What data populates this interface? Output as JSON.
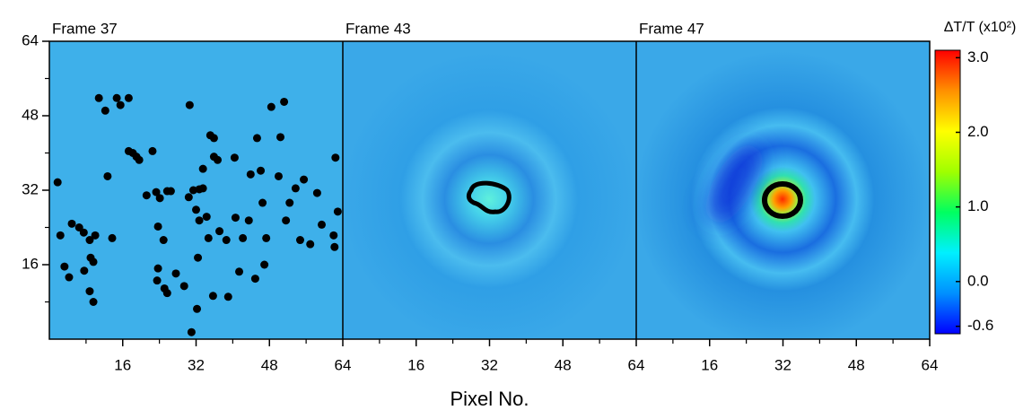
{
  "chart_data": [
    {
      "type": "scatter",
      "title": "Frame 37",
      "xlim": [
        0,
        64
      ],
      "ylim": [
        0,
        64
      ],
      "xticks": [
        16,
        32,
        48,
        64
      ],
      "yticks": [
        16,
        32,
        48,
        64
      ],
      "minor_ticks": [
        8,
        24,
        40,
        56
      ],
      "series": [
        {
          "color": "#000000",
          "x": [
            1.8,
            2.4,
            3.3,
            4.3,
            4.9,
            6.5,
            7.5,
            7.6,
            8.8,
            9.0,
            10.0,
            9.6,
            8.8,
            9.6,
            10.8,
            12.2,
            12.7,
            13.7,
            14.7,
            15.5,
            17.3,
            17.3,
            18.2,
            19.0,
            19.6,
            21.2,
            22.5,
            23.3,
            24.1,
            25.7,
            26.5,
            23.7,
            24.9,
            23.7,
            23.5,
            25.1,
            25.7,
            27.6,
            29.4,
            30.6,
            30.4,
            31.4,
            32.7,
            32.0,
            33.5,
            32.7,
            34.3,
            34.7,
            32.4,
            33.5,
            35.1,
            35.9,
            36.7,
            35.7,
            37.1,
            38.6,
            39.0,
            40.4,
            40.6,
            41.4,
            42.2,
            43.5,
            43.9,
            45.3,
            46.1,
            46.5,
            47.3,
            44.9,
            46.9,
            48.4,
            50.0,
            51.2,
            50.4,
            51.6,
            52.4,
            53.7,
            54.7,
            55.5,
            56.9,
            58.4,
            59.4,
            62.0,
            62.4,
            62.2,
            62.9,
            31.0,
            32.2,
            35.9
          ],
          "values": [
            33.7,
            22.3,
            15.6,
            13.3,
            24.8,
            24.0,
            22.9,
            14.7,
            21.3,
            17.5,
            22.3,
            16.6,
            10.3,
            8.0,
            51.8,
            49.1,
            35.0,
            21.7,
            51.8,
            50.3,
            51.8,
            40.4,
            40.0,
            39.2,
            38.5,
            30.9,
            40.4,
            31.6,
            30.3,
            31.8,
            31.8,
            24.2,
            21.3,
            15.2,
            12.6,
            10.9,
            9.9,
            14.1,
            11.4,
            50.3,
            30.5,
            32.0,
            32.2,
            27.8,
            32.4,
            25.5,
            26.3,
            21.7,
            17.5,
            36.6,
            43.8,
            39.2,
            38.5,
            9.3,
            23.2,
            21.3,
            9.1,
            39.0,
            26.1,
            14.5,
            21.7,
            25.5,
            35.4,
            43.2,
            36.2,
            29.3,
            21.7,
            13.0,
            16.0,
            49.9,
            35.0,
            51.0,
            43.4,
            25.5,
            29.3,
            32.4,
            21.3,
            34.3,
            20.4,
            31.4,
            24.6,
            22.3,
            39.0,
            19.8,
            27.4,
            1.5,
            6.5,
            43.2
          ]
        }
      ]
    },
    {
      "type": "heatmap",
      "title": "Frame 43",
      "xlim": [
        0,
        64
      ],
      "ylim": [
        0,
        64
      ],
      "xticks": [
        16,
        32,
        48,
        64
      ],
      "minor_ticks": [
        8,
        24,
        40,
        56
      ],
      "xlabel": "Pixel No."
    },
    {
      "type": "heatmap",
      "title": "Frame 47",
      "xlim": [
        0,
        64
      ],
      "ylim": [
        0,
        64
      ],
      "xticks": [
        16,
        32,
        48,
        64
      ],
      "minor_ticks": [
        8,
        24,
        40,
        56
      ]
    },
    {
      "type": "colorbar",
      "title": "ΔT/T (x10²)",
      "clim": [
        -0.7,
        3.1
      ],
      "colors": [
        "#0000ff",
        "#0090ff",
        "#00f0ff",
        "#00ff60",
        "#a0ff00",
        "#ffff00",
        "#ff9000",
        "#ff0000"
      ],
      "ticks": [
        {
          "value": 3.0,
          "label": "3.0"
        },
        {
          "value": 2.0,
          "label": "2.0"
        },
        {
          "value": 1.0,
          "label": "1.0"
        },
        {
          "value": 0.0,
          "label": "0.0"
        },
        {
          "value": -0.6,
          "label": "-0.6"
        }
      ]
    }
  ]
}
